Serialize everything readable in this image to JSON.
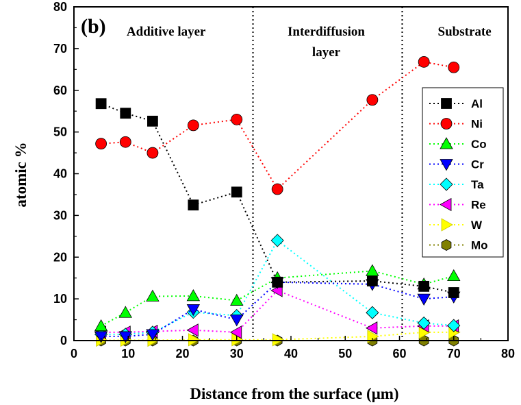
{
  "chart_data": {
    "type": "line",
    "panel_label": "(b)",
    "xlabel": "Distance from the surface (μm)",
    "ylabel": "atomic %",
    "xlim": [
      0,
      80
    ],
    "ylim": [
      0,
      80
    ],
    "x_ticks": [
      0,
      10,
      20,
      30,
      40,
      50,
      60,
      70,
      80
    ],
    "y_ticks": [
      0,
      10,
      20,
      30,
      40,
      50,
      60,
      70,
      80
    ],
    "grid": false,
    "legend_position": "right",
    "boundaries": [
      33,
      60.5
    ],
    "region_labels": [
      {
        "lines": [
          "Additive layer"
        ],
        "x": 17
      },
      {
        "lines": [
          "Interdiffusion",
          "layer"
        ],
        "x": 46.5
      },
      {
        "lines": [
          "Substrate"
        ],
        "x": 72
      }
    ],
    "series": [
      {
        "name": "Al",
        "color": "#000000",
        "marker": "square",
        "x": [
          5,
          9.5,
          14.5,
          22,
          30,
          37.5,
          55,
          64.5,
          70
        ],
        "y": [
          56.8,
          54.5,
          52.6,
          32.5,
          35.6,
          14,
          14.3,
          13,
          11.5
        ]
      },
      {
        "name": "Ni",
        "color": "#ff0000",
        "marker": "circle",
        "x": [
          5,
          9.5,
          14.5,
          22,
          30,
          37.5,
          55,
          64.5,
          70
        ],
        "y": [
          47.2,
          47.6,
          45,
          51.6,
          53,
          36.3,
          57.7,
          66.8,
          65.5
        ]
      },
      {
        "name": "Co",
        "color": "#00ff00",
        "marker": "triangle-up",
        "x": [
          5,
          9.5,
          14.5,
          22,
          30,
          37.5,
          55,
          64.5,
          70
        ],
        "y": [
          3.5,
          6.7,
          10.6,
          10.7,
          9.6,
          15,
          16.7,
          13.5,
          15.5
        ]
      },
      {
        "name": "Cr",
        "color": "#0000ff",
        "marker": "triangle-down",
        "x": [
          5,
          9.5,
          14.5,
          22,
          30,
          37.5,
          55,
          64.5,
          70
        ],
        "y": [
          1,
          1,
          1.5,
          7.5,
          5,
          14,
          13.5,
          10,
          10.5
        ]
      },
      {
        "name": "Ta",
        "color": "#00ffff",
        "marker": "diamond",
        "x": [
          5,
          9.5,
          14.5,
          22,
          30,
          37.5,
          55,
          64.5,
          70
        ],
        "y": [
          1.5,
          1.5,
          2,
          6.8,
          6,
          24,
          6.7,
          4.2,
          3.6
        ]
      },
      {
        "name": "Re",
        "color": "#ff00ff",
        "marker": "triangle-left",
        "x": [
          5,
          9.5,
          14.5,
          22,
          30,
          37.5,
          55,
          64.5,
          70
        ],
        "y": [
          2,
          2,
          2.2,
          2.5,
          2,
          12,
          3,
          3.5,
          3.5
        ]
      },
      {
        "name": "W",
        "color": "#ffff00",
        "marker": "triangle-right",
        "x": [
          5,
          9.5,
          14.5,
          22,
          30,
          37.5,
          55,
          64.5,
          70
        ],
        "y": [
          0.1,
          0.1,
          0.1,
          0.2,
          0.2,
          0.2,
          1,
          2,
          2
        ]
      },
      {
        "name": "Mo",
        "color": "#808000",
        "marker": "hexagon",
        "x": [
          5,
          9.5,
          14.5,
          22,
          30,
          37.5,
          55,
          64.5,
          70
        ],
        "y": [
          0,
          0,
          0,
          0,
          0,
          0,
          0,
          0,
          0
        ]
      }
    ]
  }
}
